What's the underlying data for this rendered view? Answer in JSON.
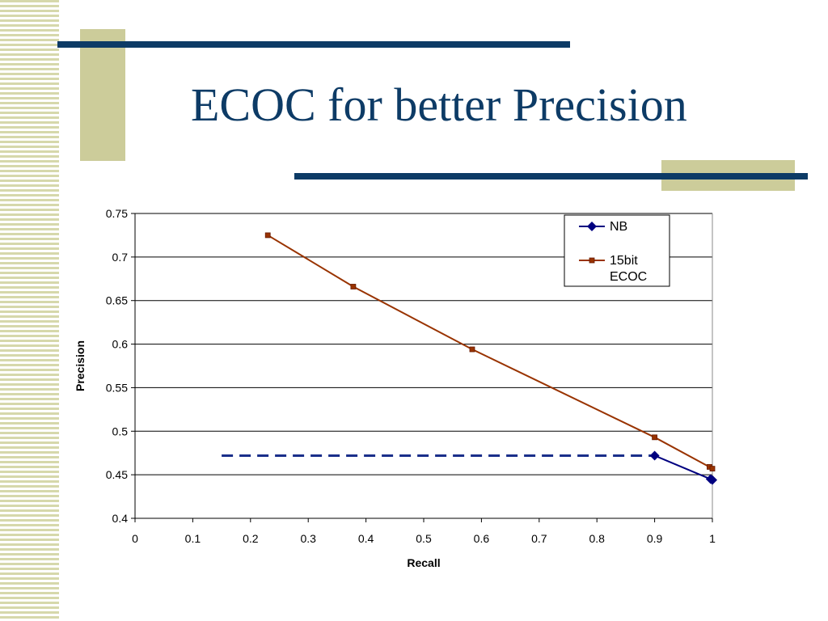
{
  "slide": {
    "title": "ECOC for better Precision",
    "colors": {
      "title": "#0d3b66",
      "accent_navy": "#0d3b66",
      "accent_tan": "#cccc9a",
      "stripes": "#d6d8ab"
    }
  },
  "chart_data": {
    "type": "line",
    "title": "",
    "xlabel": "Recall",
    "ylabel": "Precision",
    "xlim": [
      0,
      1
    ],
    "ylim": [
      0.4,
      0.75
    ],
    "xticks": [
      0,
      0.1,
      0.2,
      0.3,
      0.4,
      0.5,
      0.6,
      0.7,
      0.8,
      0.9,
      1
    ],
    "yticks": [
      0.4,
      0.45,
      0.5,
      0.55,
      0.6,
      0.65,
      0.7,
      0.75
    ],
    "grid": "horizontal",
    "legend_position": "top-right",
    "series": [
      {
        "name": "NB",
        "color": "#000080",
        "marker": "diamond",
        "points": [
          [
            0.9,
            0.472
          ],
          [
            0.997,
            0.445
          ],
          [
            1.0,
            0.444
          ]
        ]
      },
      {
        "name": "15bit ECOC",
        "color": "#993300",
        "marker": "square",
        "points": [
          [
            0.23,
            0.725
          ],
          [
            0.378,
            0.666
          ],
          [
            0.584,
            0.594
          ],
          [
            0.9,
            0.493
          ],
          [
            0.995,
            0.459
          ],
          [
            1.0,
            0.457
          ]
        ]
      }
    ],
    "annotations": [
      {
        "type": "dashed-horizontal-line",
        "y": 0.472,
        "x_from": 0.15,
        "x_to": 0.9,
        "color": "#1a2f8a"
      }
    ]
  }
}
